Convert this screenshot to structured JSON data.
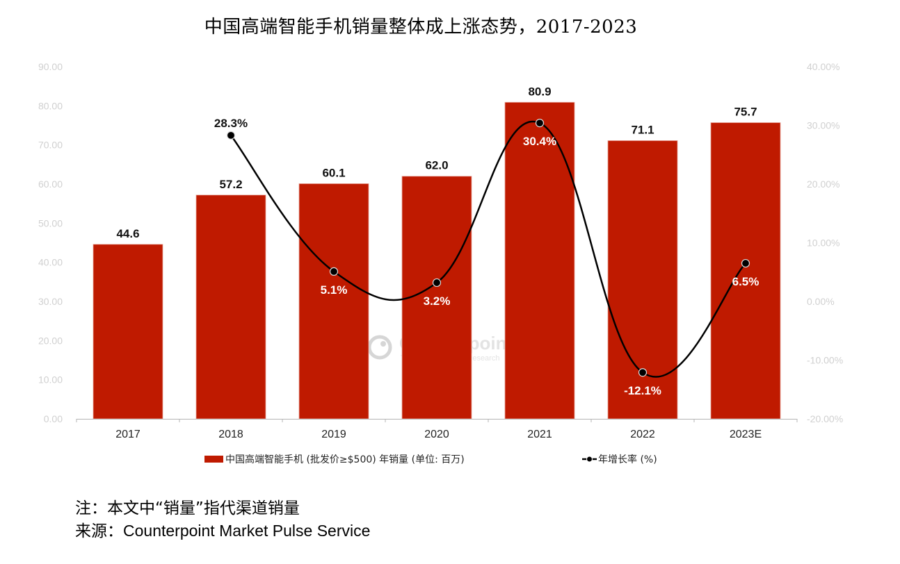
{
  "title": "中国高端智能手机销量整体成上涨态势，2017-2023",
  "chart_data": {
    "type": "bar",
    "title": "中国高端智能手机销量整体成上涨态势，2017-2023",
    "categories": [
      "2017",
      "2018",
      "2019",
      "2020",
      "2021",
      "2022",
      "2023E"
    ],
    "series": [
      {
        "name": "中国高端智能手机 (批发价≥$500) 年销量 (单位: 百万)",
        "type": "bar",
        "axis": "left",
        "color": "#BF1A00",
        "values": [
          44.6,
          57.2,
          60.1,
          62.0,
          80.9,
          71.1,
          75.7
        ],
        "labels": [
          "44.6",
          "57.2",
          "60.1",
          "62.0",
          "80.9",
          "71.1",
          "75.7"
        ]
      },
      {
        "name": "年增长率 (%)",
        "type": "line",
        "smooth": true,
        "axis": "right",
        "color": "#000000",
        "values": [
          null,
          28.3,
          5.1,
          3.2,
          30.4,
          -12.1,
          6.5
        ],
        "labels": [
          null,
          "28.3%",
          "5.1%",
          "3.2%",
          "30.4%",
          "-12.1%",
          "6.5%"
        ]
      }
    ],
    "left_axis": {
      "ylim": [
        0,
        90
      ],
      "ticks": [
        "0.00",
        "10.00",
        "20.00",
        "30.00",
        "40.00",
        "50.00",
        "60.00",
        "70.00",
        "80.00",
        "90.00"
      ]
    },
    "right_axis": {
      "ylim": [
        -20,
        40
      ],
      "ticks": [
        "-20.00%",
        "-10.00%",
        "0.00%",
        "10.00%",
        "20.00%",
        "30.00%",
        "40.00%"
      ]
    },
    "grid": false,
    "legend": "bottom",
    "xlabel": "",
    "ylabel": ""
  },
  "legend": {
    "bar_label": "中国高端智能手机 (批发价≥$500) 年销量 (单位:  百万)",
    "line_label": "年增长率 (%)"
  },
  "watermark": {
    "brand": "Counterpoint",
    "tagline": "Technology Market Research"
  },
  "notes": {
    "note_prefix": "注：",
    "note_text": "本文中“销量”指代渠道销量",
    "source_prefix": "来源：",
    "source_text": "Counterpoint Market Pulse Service"
  }
}
